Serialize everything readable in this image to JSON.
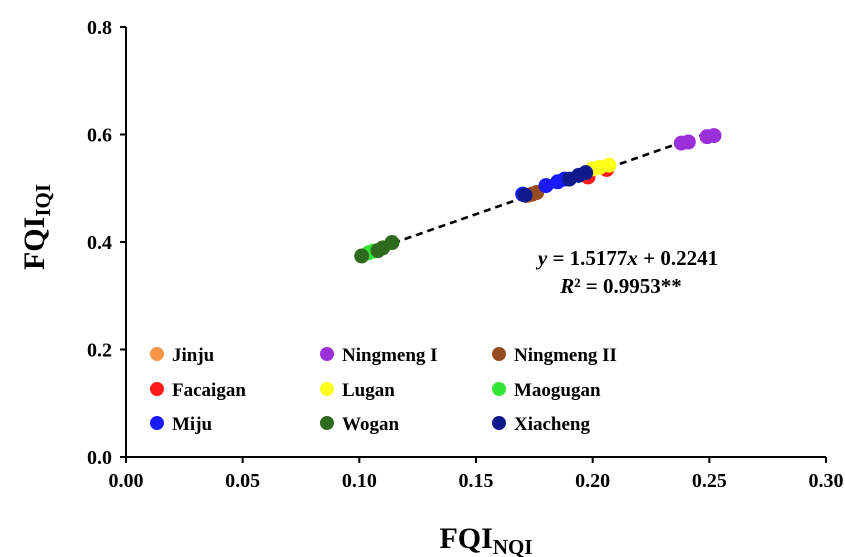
{
  "chart_data": {
    "type": "scatter",
    "title": "",
    "xlabel": {
      "main": "FQI",
      "sub": "NQI"
    },
    "ylabel": {
      "main": "FQI",
      "sub": "IQI"
    },
    "xlim": [
      0,
      0.3
    ],
    "ylim": [
      0,
      0.8
    ],
    "xticks": [
      "0.00",
      "0.05",
      "0.10",
      "0.15",
      "0.20",
      "0.25",
      "0.30"
    ],
    "yticks": [
      "0.0",
      "0.2",
      "0.4",
      "0.6",
      "0.8"
    ],
    "grid": false,
    "legend_position": "bottom-left",
    "fit_line": {
      "slope": 1.5177,
      "intercept": 0.2241,
      "x_range": [
        0.1,
        0.252
      ],
      "style": "dashed",
      "color": "#000000"
    },
    "equation": {
      "lead": "y",
      "rest": " = 1.5177",
      "var": "x",
      "tail": " + 0.2241"
    },
    "r2": {
      "lead": "R",
      "rest": "² = 0.9953**"
    },
    "series": [
      {
        "name": "Jinju",
        "color": "#F79646",
        "x": [
          0.172
        ],
        "y": [
          0.486
        ]
      },
      {
        "name": "Ningmeng I",
        "color": "#9B30D9",
        "x": [
          0.238,
          0.241,
          0.249,
          0.252
        ],
        "y": [
          0.584,
          0.586,
          0.596,
          0.598
        ]
      },
      {
        "name": "Ningmeng II",
        "color": "#964B1E",
        "x": [
          0.174,
          0.176
        ],
        "y": [
          0.489,
          0.492
        ]
      },
      {
        "name": "Facaigan",
        "color": "#FF1A1A",
        "x": [
          0.198,
          0.206
        ],
        "y": [
          0.521,
          0.535
        ]
      },
      {
        "name": "Lugan",
        "color": "#FFFF1A",
        "x": [
          0.2,
          0.203,
          0.207
        ],
        "y": [
          0.536,
          0.539,
          0.543
        ]
      },
      {
        "name": "Maogugan",
        "color": "#33E633",
        "x": [
          0.104,
          0.106
        ],
        "y": [
          0.38,
          0.383
        ]
      },
      {
        "name": "Miju",
        "color": "#1A1AFF",
        "x": [
          0.17,
          0.18,
          0.185,
          0.188
        ],
        "y": [
          0.489,
          0.505,
          0.512,
          0.517
        ]
      },
      {
        "name": "Wogan",
        "color": "#2E6B1E",
        "x": [
          0.101,
          0.108,
          0.11,
          0.114
        ],
        "y": [
          0.374,
          0.384,
          0.389,
          0.399
        ]
      },
      {
        "name": "Xiacheng",
        "color": "#0E1A8C",
        "x": [
          0.171,
          0.19,
          0.194,
          0.197
        ],
        "y": [
          0.487,
          0.517,
          0.524,
          0.529
        ]
      }
    ]
  }
}
